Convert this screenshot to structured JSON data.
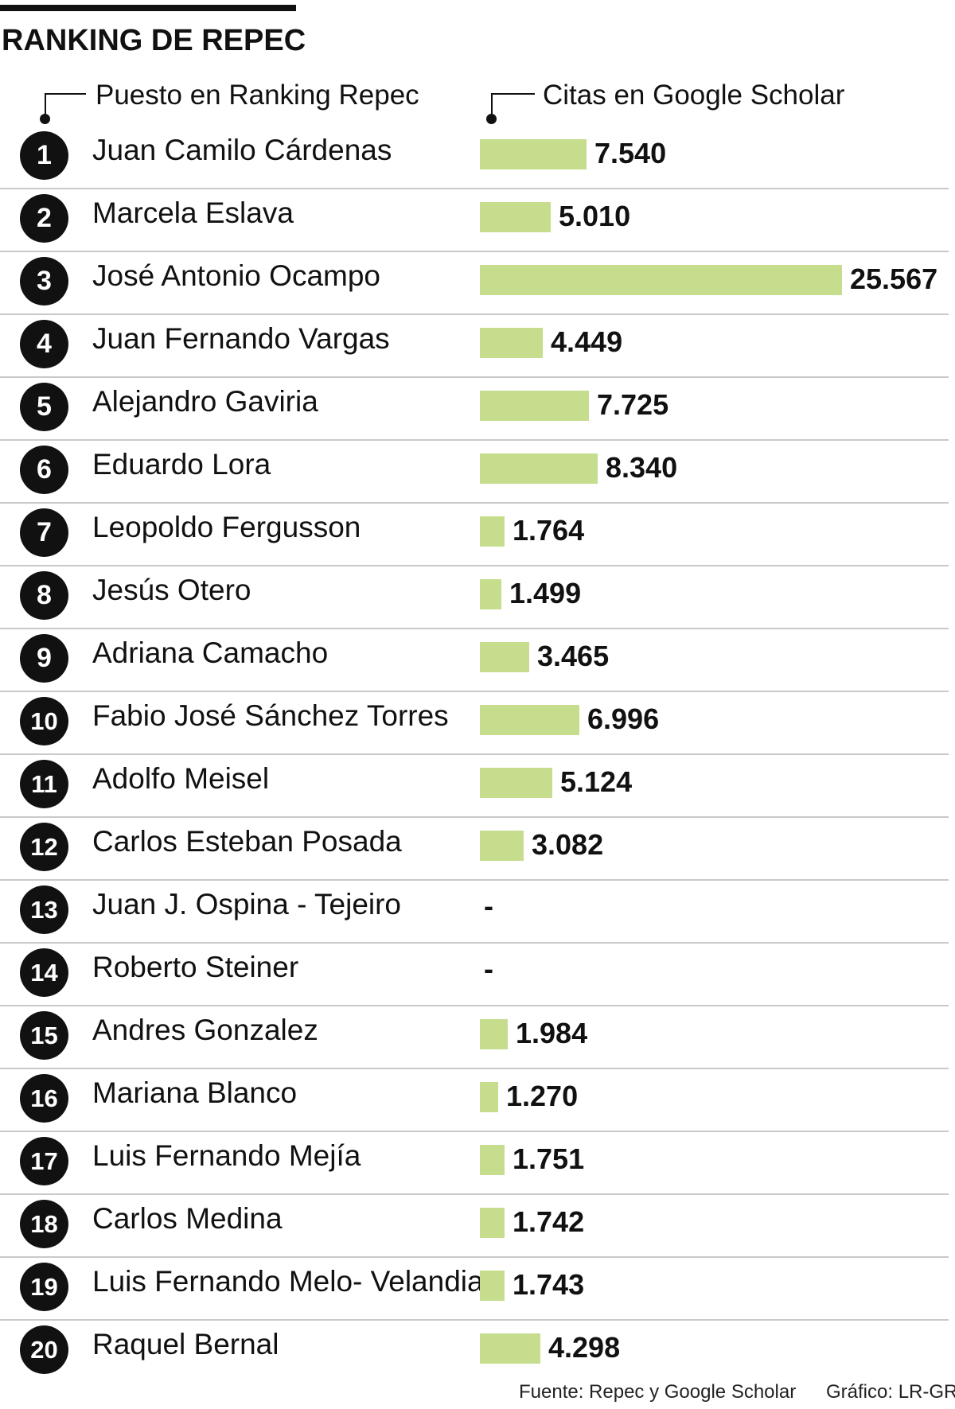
{
  "chart_data": {
    "type": "bar",
    "orientation": "horizontal",
    "title": "RANKING DE REPEC",
    "xlabel": "Citas en Google Scholar",
    "ylabel": "Puesto en Ranking Repec",
    "xlim": [
      0,
      25567
    ],
    "categories": [
      "Juan Camilo Cárdenas",
      "Marcela Eslava",
      "José Antonio Ocampo",
      "Juan Fernando Vargas",
      "Alejandro Gaviria",
      "Eduardo Lora",
      "Leopoldo Fergusson",
      "Jesús Otero",
      "Adriana Camacho",
      "Fabio José Sánchez Torres",
      "Adolfo Meisel",
      "Carlos Esteban Posada",
      "Juan J. Ospina - Tejeiro",
      "Roberto Steiner",
      "Andres Gonzalez",
      "Mariana Blanco",
      "Luis Fernando Mejía",
      "Carlos Medina",
      "Luis Fernando Melo- Velandia",
      "Raquel Bernal"
    ],
    "ranks": [
      "1",
      "2",
      "3",
      "4",
      "5",
      "6",
      "7",
      "8",
      "9",
      "10",
      "11",
      "12",
      "13",
      "14",
      "15",
      "16",
      "17",
      "18",
      "19",
      "20"
    ],
    "values": [
      7540,
      5010,
      25567,
      4449,
      7725,
      8340,
      1764,
      1499,
      3465,
      6996,
      5124,
      3082,
      null,
      null,
      1984,
      1270,
      1751,
      1742,
      1743,
      4298
    ],
    "value_labels": [
      "7.540",
      "5.010",
      "25.567",
      "4.449",
      "7.725",
      "8.340",
      "1.764",
      "1.499",
      "3.465",
      "6.996",
      "5.124",
      "3.082",
      "-",
      "-",
      "1.984",
      "1.270",
      "1.751",
      "1.742",
      "1.743",
      "4.298"
    ],
    "bar_color": "#c5dd8d"
  },
  "headers": {
    "left": "Puesto en Ranking Repec",
    "right": "Citas en Google Scholar"
  },
  "footer": {
    "source": "Fuente: Repec y Google Scholar",
    "credit": "Gráfico: LR-GR"
  }
}
